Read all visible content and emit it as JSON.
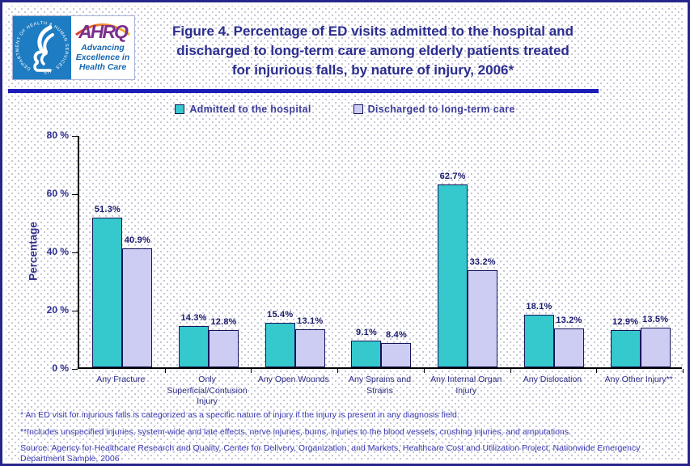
{
  "header": {
    "logo": {
      "hhs_ring_text": "DEPARTMENT OF HEALTH & HUMAN SERVICES - USA",
      "ahrq_acronym": "AHRQ",
      "ahrq_tagline": "Advancing\nExcellence in\nHealth Care"
    },
    "title_lines": [
      "Figure 4. Percentage of ED visits admitted to the hospital and",
      "discharged to long-term care among elderly patients treated",
      "for injurious falls, by nature of injury, 2006*"
    ]
  },
  "legend": [
    {
      "label": "Admitted to the hospital",
      "color": "#35c8cc"
    },
    {
      "label": "Discharged to long-term care",
      "color": "#cdcdf4"
    }
  ],
  "chart_data": {
    "type": "bar",
    "title": "Figure 4. Percentage of ED visits admitted to the hospital and discharged to long-term care among elderly patients treated for injurious falls, by nature of injury, 2006*",
    "categories": [
      "Any Fracture",
      "Only Superficial/Contusion Injury",
      "Any Open Wounds",
      "Any Sprains and Strains",
      "Any Internal Organ Injury",
      "Any Dislocation",
      "Any Other Injury**"
    ],
    "series": [
      {
        "name": "Admitted to the hospital",
        "color": "#35c8cc",
        "values": [
          51.3,
          14.3,
          15.4,
          9.1,
          62.7,
          18.1,
          12.9
        ]
      },
      {
        "name": "Discharged to long-term care",
        "color": "#cdcdf4",
        "values": [
          40.9,
          12.8,
          13.1,
          8.4,
          33.2,
          13.2,
          13.5
        ]
      }
    ],
    "xlabel": "",
    "ylabel": "Percentage",
    "ylim": [
      0,
      80
    ],
    "yticks": [
      0,
      20,
      40,
      60,
      80
    ],
    "ytick_labels": [
      "0 %",
      "20 %",
      "40 %",
      "60 %",
      "80 %"
    ],
    "value_label_suffix": "%",
    "grid": false,
    "legend_position": "top"
  },
  "footnotes": [
    "* An ED visit for injurious falls is categorized as a specific nature of injury if the injury is present in any diagnosis field.",
    "**Includes unspecified injuries, system-wide and late effects, nerve injuries, burns, injuries to the blood vessels, crushing injuries, and amputations.",
    "Source: Agency for Healthcare Research and Quality, Center for Delivery, Organization, and Markets, Healthcare Cost and Utilization Project, Nationwide Emergency Department Sample, 2006"
  ]
}
